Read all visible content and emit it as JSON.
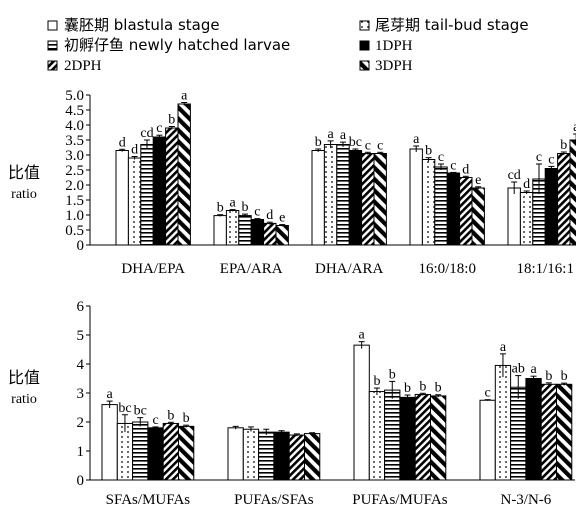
{
  "legend": [
    {
      "label": "囊胚期  blastula stage",
      "pattern": "white"
    },
    {
      "label": "尾芽期  tail-bud stage",
      "pattern": "dots"
    },
    {
      "label": "初孵仔鱼  newly hatched larvae",
      "pattern": "hlines"
    },
    {
      "label": "1DPH",
      "pattern": "black"
    },
    {
      "label": "2DPH",
      "pattern": "diag-dense"
    },
    {
      "label": "3DPH",
      "pattern": "diag-bold"
    }
  ],
  "chart_data": [
    {
      "type": "bar",
      "title": "",
      "ylabel": [
        "比值",
        "ratio"
      ],
      "xlabel": "",
      "ylim": [
        0,
        5.0
      ],
      "yticks": [
        "0",
        "0.5",
        "1.0",
        "1.5",
        "2.0",
        "2.5",
        "3.0",
        "3.5",
        "4.0",
        "4.5",
        "5.0"
      ],
      "grid": false,
      "legend_position": "top",
      "categories": [
        "DHA/EPA",
        "EPA/ARA",
        "DHA/ARA",
        "16:0/18:0",
        "18:1/16:1"
      ],
      "series": [
        {
          "name": "囊胚期  blastula stage",
          "values": [
            3.15,
            0.98,
            3.15,
            3.2,
            1.9
          ],
          "errors": [
            0.04,
            0.03,
            0.05,
            0.1,
            0.2
          ],
          "letters": [
            "d",
            "b",
            "b",
            "a",
            "cd"
          ]
        },
        {
          "name": "尾芽期  tail-bud stage",
          "values": [
            2.9,
            1.15,
            3.35,
            2.85,
            1.75
          ],
          "errors": [
            0.05,
            0.03,
            0.12,
            0.06,
            0.05
          ],
          "letters": [
            "d",
            "a",
            "a",
            "b",
            "d"
          ]
        },
        {
          "name": "初孵仔鱼  newly hatched larvae",
          "values": [
            3.35,
            0.98,
            3.35,
            2.6,
            2.2
          ],
          "errors": [
            0.15,
            0.05,
            0.08,
            0.1,
            0.5
          ],
          "letters": [
            "cd",
            "b",
            "a",
            "c",
            "c"
          ]
        },
        {
          "name": "1DPH",
          "values": [
            3.6,
            0.85,
            3.15,
            2.4,
            2.55
          ],
          "errors": [
            0.06,
            0.03,
            0.05,
            0.02,
            0.07
          ],
          "letters": [
            "c",
            "c",
            "bc",
            "c",
            "c"
          ]
        },
        {
          "name": "2DPH",
          "values": [
            3.9,
            0.72,
            3.05,
            2.25,
            3.05
          ],
          "errors": [
            0.05,
            0.04,
            0.04,
            0.04,
            0.05
          ],
          "letters": [
            "b",
            "d",
            "c",
            "d",
            "b"
          ]
        },
        {
          "name": "3DPH",
          "values": [
            4.7,
            0.65,
            3.05,
            1.9,
            3.5
          ],
          "errors": [
            0.05,
            0.03,
            0.04,
            0.04,
            0.2
          ],
          "letters": [
            "a",
            "e",
            "c",
            "e",
            "a"
          ]
        }
      ]
    },
    {
      "type": "bar",
      "title": "",
      "ylabel": [
        "比值",
        "ratio"
      ],
      "xlabel": "",
      "ylim": [
        0,
        6
      ],
      "yticks": [
        "0",
        "1",
        "2",
        "3",
        "4",
        "5",
        "6"
      ],
      "grid": false,
      "categories": [
        "SFAs/MUFAs",
        "PUFAs/SFAs",
        "PUFAs/MUFAs",
        "N-3/N-6"
      ],
      "series": [
        {
          "name": "囊胚期  blastula stage",
          "values": [
            2.6,
            1.8,
            4.65,
            2.75
          ],
          "errors": [
            0.12,
            0.05,
            0.12,
            0.02
          ],
          "letters": [
            "a",
            "",
            "a",
            "c"
          ]
        },
        {
          "name": "尾芽期  tail-bud stage",
          "values": [
            1.95,
            1.75,
            3.05,
            3.95
          ],
          "errors": [
            0.3,
            0.08,
            0.12,
            0.4
          ],
          "letters": [
            "bc",
            "",
            "b",
            "a"
          ]
        },
        {
          "name": "初孵仔鱼  newly hatched larvae",
          "values": [
            2.0,
            1.65,
            3.1,
            3.2
          ],
          "errors": [
            0.15,
            0.1,
            0.3,
            0.4
          ],
          "letters": [
            "bc",
            "",
            "b",
            "ab"
          ]
        },
        {
          "name": "1DPH",
          "values": [
            1.8,
            1.65,
            2.85,
            3.5
          ],
          "errors": [
            0.03,
            0.05,
            0.08,
            0.08
          ],
          "letters": [
            "c",
            "",
            "b",
            "a"
          ]
        },
        {
          "name": "2DPH",
          "values": [
            1.95,
            1.55,
            2.95,
            3.3
          ],
          "errors": [
            0.04,
            0.04,
            0.04,
            0.05
          ],
          "letters": [
            "b",
            "",
            "b",
            "b"
          ]
        },
        {
          "name": "3DPH",
          "values": [
            1.85,
            1.6,
            2.9,
            3.3
          ],
          "errors": [
            0.04,
            0.03,
            0.04,
            0.04
          ],
          "letters": [
            "b",
            "",
            "b",
            "b"
          ]
        }
      ]
    }
  ]
}
